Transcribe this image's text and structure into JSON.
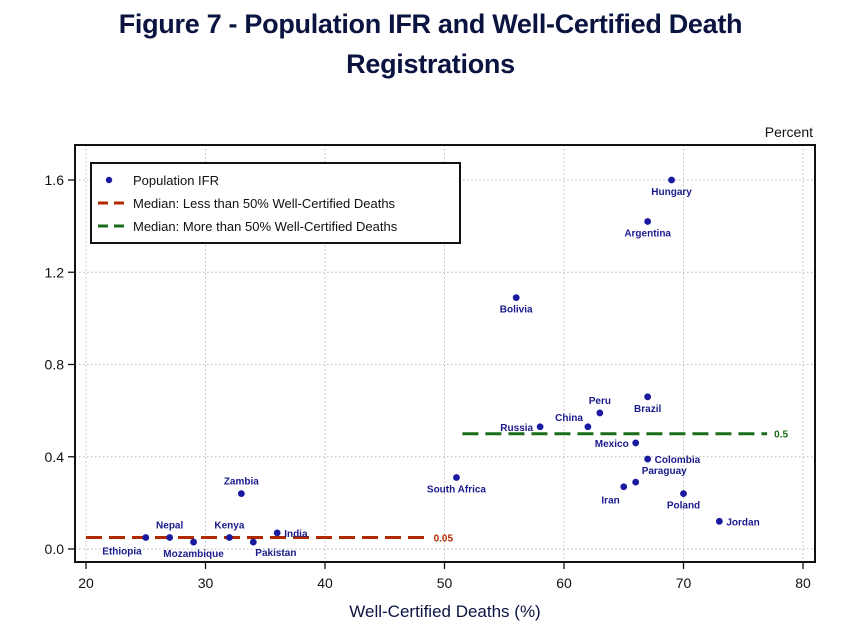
{
  "title_line1": "Figure 7 - Population IFR and Well-Certified Death",
  "title_line2": "Registrations",
  "chart_data": {
    "type": "scatter",
    "title": "Figure 7 - Population IFR and Well-Certified Death Registrations",
    "xlabel": "Well-Certified Deaths (%)",
    "ylabel": "",
    "y_units_label": "Percent",
    "xlim": [
      19,
      81
    ],
    "ylim": [
      -0.06,
      1.75
    ],
    "x_ticks": [
      20,
      30,
      40,
      50,
      60,
      70,
      80
    ],
    "x_tick_labels": [
      "20",
      "30",
      "40",
      "50",
      "60",
      "70",
      "80"
    ],
    "y_ticks": [
      0.0,
      0.4,
      0.8,
      1.2,
      1.6
    ],
    "y_tick_labels": [
      "0.0",
      "0.4",
      "0.8",
      "1.2",
      "1.6"
    ],
    "grid": true,
    "legend_position": "top-left",
    "legend": [
      {
        "label": "Population IFR",
        "kind": "marker",
        "color": "#1a1aa0"
      },
      {
        "label": "Median: Less than 50% Well-Certified Deaths",
        "kind": "dash",
        "color": "#b02a00"
      },
      {
        "label": "Median: More than 50% Well-Certified Deaths",
        "kind": "dash",
        "color": "#1a6b1a"
      }
    ],
    "series": [
      {
        "name": "Population IFR",
        "color": "#1a1aa0",
        "points": [
          {
            "label": "Hungary",
            "x": 69,
            "y": 1.6,
            "label_pos": "below"
          },
          {
            "label": "Argentina",
            "x": 67,
            "y": 1.42,
            "label_pos": "below"
          },
          {
            "label": "Bolivia",
            "x": 56,
            "y": 1.09,
            "label_pos": "below"
          },
          {
            "label": "Brazil",
            "x": 67,
            "y": 0.66,
            "label_pos": "below"
          },
          {
            "label": "Peru",
            "x": 63,
            "y": 0.59,
            "label_pos": "above"
          },
          {
            "label": "China",
            "x": 62,
            "y": 0.53,
            "label_pos": "above-left"
          },
          {
            "label": "Russia",
            "x": 58,
            "y": 0.53,
            "label_pos": "left"
          },
          {
            "label": "Mexico",
            "x": 66,
            "y": 0.46,
            "label_pos": "left"
          },
          {
            "label": "Colombia",
            "x": 67,
            "y": 0.39,
            "label_pos": "right"
          },
          {
            "label": "Paraguay",
            "x": 66,
            "y": 0.29,
            "label_pos": "above-right"
          },
          {
            "label": "Iran",
            "x": 65,
            "y": 0.27,
            "label_pos": "below-left"
          },
          {
            "label": "Poland",
            "x": 70,
            "y": 0.24,
            "label_pos": "below"
          },
          {
            "label": "Jordan",
            "x": 73,
            "y": 0.12,
            "label_pos": "right"
          },
          {
            "label": "South Africa",
            "x": 51,
            "y": 0.31,
            "label_pos": "below"
          },
          {
            "label": "Zambia",
            "x": 33,
            "y": 0.24,
            "label_pos": "above"
          },
          {
            "label": "Nepal",
            "x": 27,
            "y": 0.05,
            "label_pos": "above"
          },
          {
            "label": "Ethiopia",
            "x": 25,
            "y": 0.05,
            "label_pos": "below-left"
          },
          {
            "label": "Mozambique",
            "x": 29,
            "y": 0.03,
            "label_pos": "below"
          },
          {
            "label": "Kenya",
            "x": 32,
            "y": 0.05,
            "label_pos": "above"
          },
          {
            "label": "Pakistan",
            "x": 34,
            "y": 0.03,
            "label_pos": "below-right"
          },
          {
            "label": "India",
            "x": 36,
            "y": 0.07,
            "label_pos": "right"
          }
        ]
      }
    ],
    "reference_lines": [
      {
        "name": "Median: Less than 50% Well-Certified Deaths",
        "y": 0.05,
        "x_start": 20,
        "x_end": 48.5,
        "color": "#b02a00",
        "label": "0.05"
      },
      {
        "name": "Median: More than 50% Well-Certified Deaths",
        "y": 0.5,
        "x_start": 51.5,
        "x_end": 77,
        "color": "#1a6b1a",
        "label": "0.5"
      }
    ]
  }
}
